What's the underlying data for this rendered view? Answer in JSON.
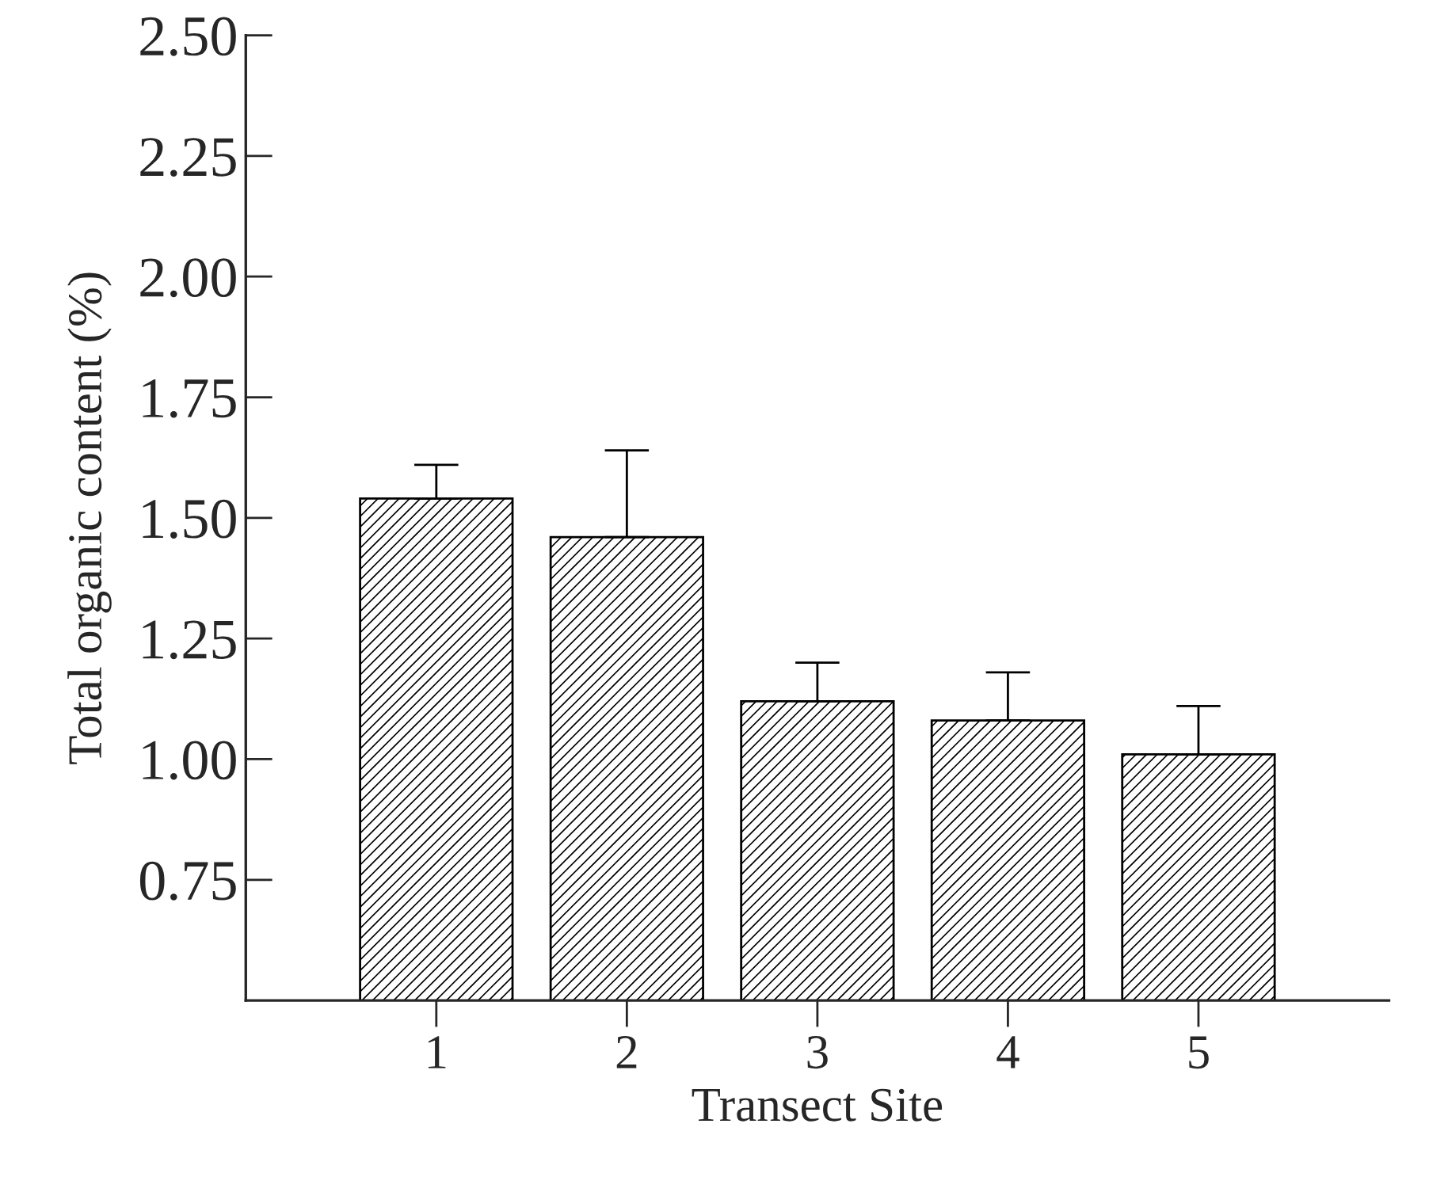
{
  "chart_data": {
    "type": "bar",
    "xlabel": "Transect Site",
    "ylabel": "Total organic content (%)",
    "categories": [
      "1",
      "2",
      "3",
      "4",
      "5"
    ],
    "values": [
      1.54,
      1.46,
      1.12,
      1.08,
      1.01
    ],
    "errors": [
      [
        1.54,
        1.61
      ],
      [
        1.46,
        1.64
      ],
      [
        1.12,
        1.2
      ],
      [
        1.08,
        1.18
      ],
      [
        1.01,
        1.11
      ]
    ],
    "color": "#000000",
    "ylim": [
      0.5,
      2.5
    ],
    "yticks": [
      {
        "value": 0.75,
        "label": "0.75"
      },
      {
        "value": 1.0,
        "label": "1.00"
      },
      {
        "value": 1.25,
        "label": "1.25"
      },
      {
        "value": 1.5,
        "label": "1.50"
      },
      {
        "value": 1.75,
        "label": "1.75"
      },
      {
        "value": 2.0,
        "label": "2.00"
      },
      {
        "value": 2.25,
        "label": "2.25"
      },
      {
        "value": 2.5,
        "label": "2.50"
      }
    ],
    "grid": false
  }
}
